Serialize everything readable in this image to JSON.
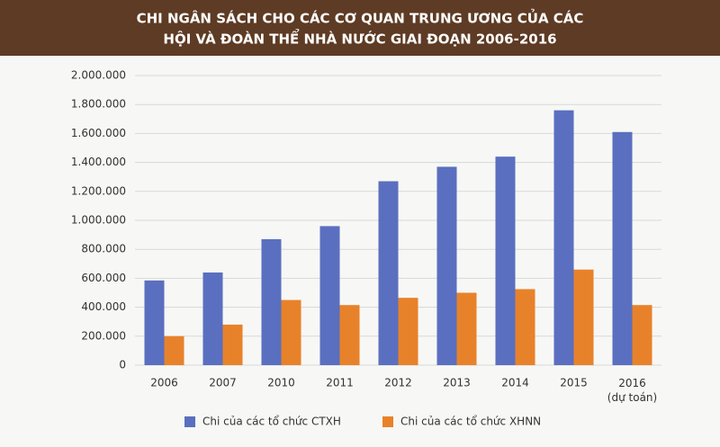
{
  "chart_data": {
    "type": "bar",
    "title": [
      "CHI NGÂN SÁCH CHO CÁC CƠ QUAN TRUNG ƯƠNG CỦA CÁC",
      "HỘI VÀ ĐOÀN THỂ NHÀ NƯỚC GIAI ĐOẠN 2006-2016"
    ],
    "categories": [
      "2006",
      "2007",
      "2010",
      "2011",
      "2012",
      "2013",
      "2014",
      "2015",
      "2016 (dự toán)"
    ],
    "series": [
      {
        "name": "Chi của các tổ chức CTXH",
        "color": "#5a6fbf",
        "values": [
          585000,
          640000,
          870000,
          960000,
          1270000,
          1370000,
          1440000,
          1760000,
          1610000
        ]
      },
      {
        "name": "Chi của các tổ chức XHNN",
        "color": "#e8822a",
        "values": [
          200000,
          280000,
          450000,
          415000,
          465000,
          500000,
          525000,
          660000,
          415000
        ]
      }
    ],
    "ylim": [
      0,
      2000000
    ],
    "yticks": [
      0,
      {
        "value": 200000,
        "label": "200.000"
      },
      {
        "value": 400000,
        "label": "400.000"
      },
      {
        "value": 600000,
        "label": "600.000"
      },
      {
        "value": 800000,
        "label": "800.000"
      },
      {
        "value": 1000000,
        "label": "1.000.000"
      },
      {
        "value": 1200000,
        "label": "1.200.000"
      },
      {
        "value": 1400000,
        "label": "1.400.000"
      },
      {
        "value": 1600000,
        "label": "1.600.000"
      },
      {
        "value": 1800000,
        "label": "1.800.000"
      },
      {
        "value": 2000000,
        "label": "2.000.000"
      }
    ],
    "grid": true,
    "legend": "bottom"
  }
}
